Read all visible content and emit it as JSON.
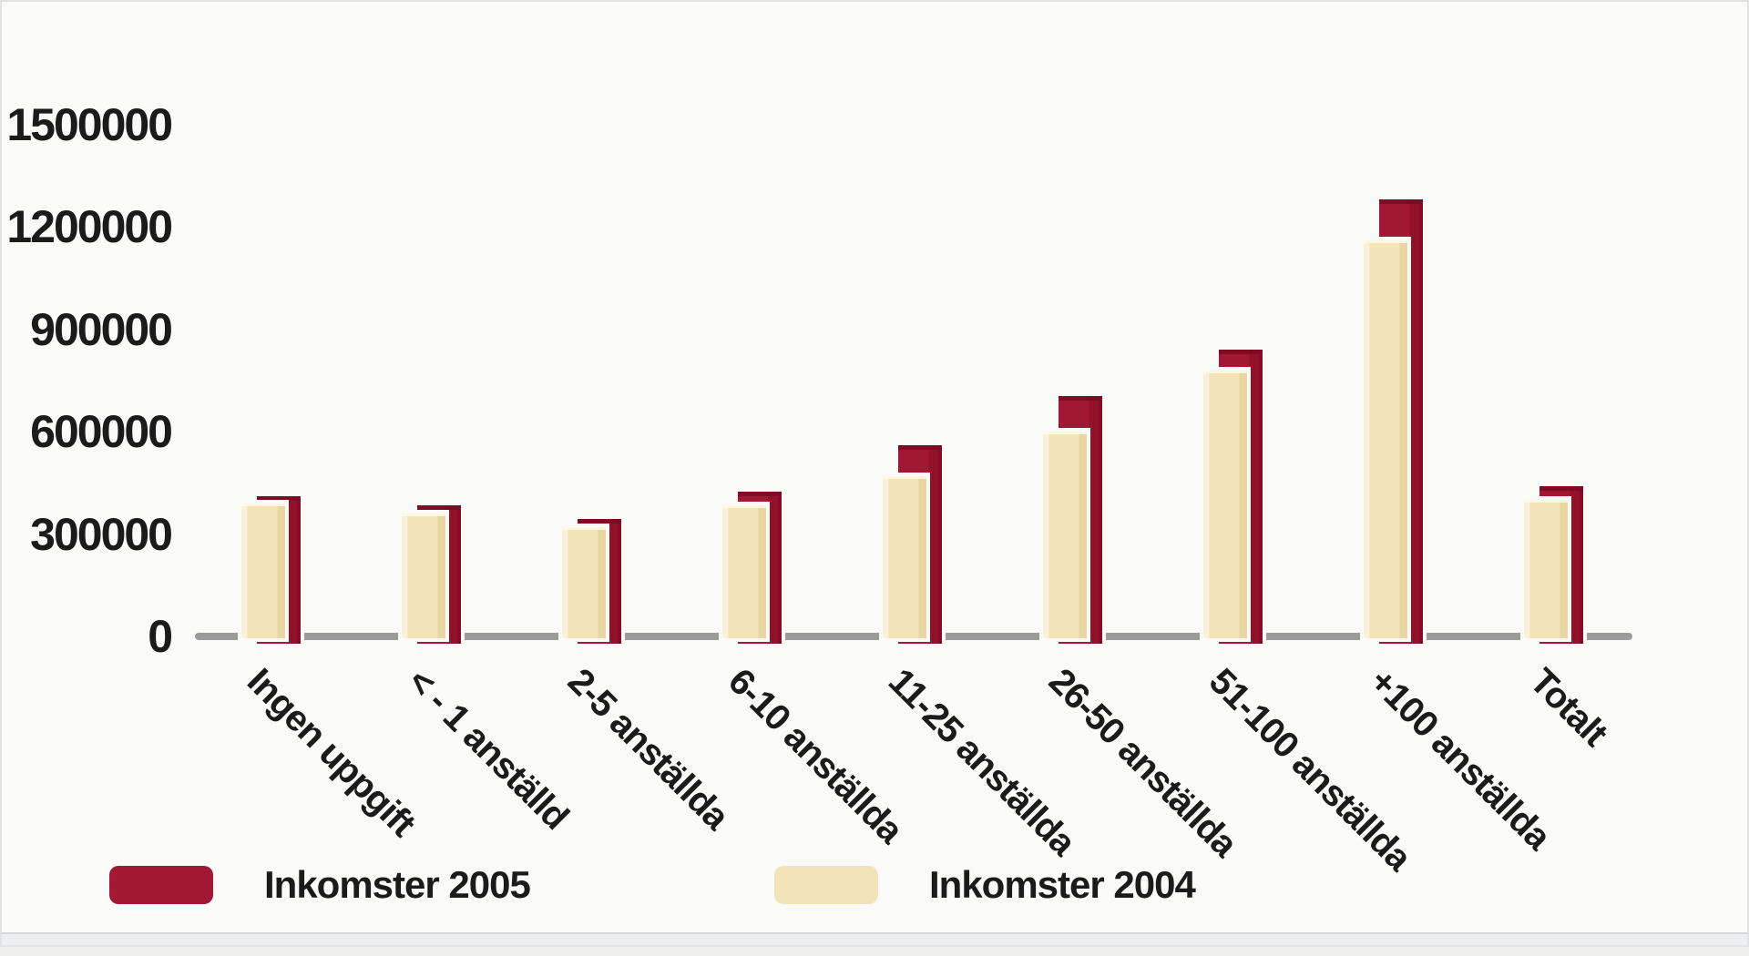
{
  "chart_data": {
    "type": "bar",
    "title": "",
    "xlabel": "",
    "ylabel": "",
    "categories": [
      "Ingen uppgift",
      "< - 1 anställd",
      "2-5 anställda",
      "6-10 anställda",
      "11-25 anställda",
      "26-50 anställda",
      "51-100 anställda",
      "+100 anställda",
      "Totalt"
    ],
    "series": [
      {
        "name": "Inkomster 2005",
        "color": "#A21734",
        "values": [
          410000,
          385000,
          345000,
          425000,
          560000,
          705000,
          840000,
          1280000,
          440000
        ]
      },
      {
        "name": "Inkomster 2004",
        "color": "#F3E4B8",
        "values": [
          390000,
          360000,
          320000,
          385000,
          470000,
          600000,
          780000,
          1160000,
          400000
        ]
      }
    ],
    "ylim": [
      0,
      1500000
    ],
    "yticks": [
      0,
      300000,
      600000,
      900000,
      1200000,
      1500000
    ],
    "ytick_labels": [
      "0",
      "300000",
      "600000",
      "900000",
      "1200000",
      "1500000"
    ],
    "grid": false,
    "legend_position": "bottom",
    "bar_style": "3d-offset-overlap"
  },
  "colors": {
    "background": "#FAFAF9",
    "frame_border": "#E2E2E0",
    "axis_line": "#9B9B9B",
    "text": "#1B1B1B",
    "series_2005": "#A21734",
    "series_2004": "#F3E4B8",
    "cream_gradient_light": "#FAF1D6",
    "cream_gradient_dark": "#EAD6A4",
    "footer_strip": "#ECEFF2"
  }
}
